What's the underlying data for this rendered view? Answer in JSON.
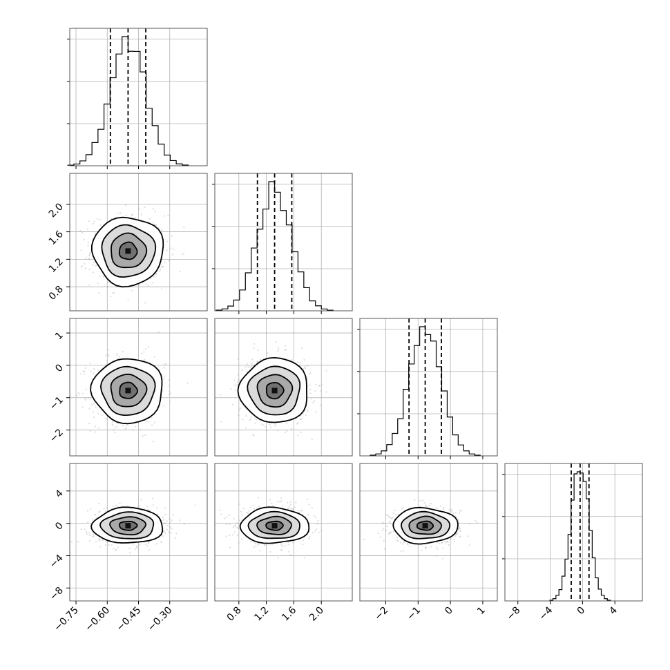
{
  "chart_data": {
    "type": "corner",
    "title": "",
    "grid": true,
    "colors": {
      "hist": "#000000",
      "contour": "#000000",
      "points": "#9e9e9e",
      "frame": "#555555",
      "grid": "#b0b0b0"
    },
    "parameters": [
      {
        "index": 0,
        "range": [
          -0.78,
          -0.12
        ],
        "ticks": [
          -0.75,
          -0.6,
          -0.45,
          -0.3
        ],
        "tick_labels": [
          "−0.75",
          "−0.60",
          "−0.45",
          "−0.30"
        ],
        "mean": -0.5,
        "sigma": 0.085,
        "quantiles": [
          -0.585,
          -0.5,
          -0.415
        ]
      },
      {
        "index": 1,
        "range": [
          0.45,
          2.45
        ],
        "ticks": [
          0.8,
          1.2,
          1.6,
          2.0
        ],
        "tick_labels": [
          "0.8",
          "1.2",
          "1.6",
          "2.0"
        ],
        "mean": 1.32,
        "sigma": 0.25,
        "quantiles": [
          1.07,
          1.32,
          1.57
        ]
      },
      {
        "index": 2,
        "range": [
          -2.8,
          1.45
        ],
        "ticks": [
          -2,
          -1,
          0,
          1
        ],
        "tick_labels": [
          "−2",
          "−1",
          "0",
          "1"
        ],
        "mean": -0.78,
        "sigma": 0.5,
        "quantiles": [
          -1.28,
          -0.78,
          -0.28
        ]
      },
      {
        "index": 3,
        "range": [
          -9.6,
          7.4
        ],
        "ticks": [
          -8,
          -4,
          0,
          4
        ],
        "tick_labels": [
          "−8",
          "−4",
          "0",
          "4"
        ],
        "mean": -0.3,
        "sigma": 1.1,
        "quantiles": [
          -1.4,
          -0.3,
          0.8
        ]
      }
    ],
    "pairs": [
      {
        "x": 0,
        "y": 1,
        "center": [
          -0.5,
          1.32
        ]
      },
      {
        "x": 0,
        "y": 2,
        "center": [
          -0.5,
          -0.78
        ]
      },
      {
        "x": 1,
        "y": 2,
        "center": [
          1.32,
          -0.78
        ]
      },
      {
        "x": 0,
        "y": 3,
        "center": [
          -0.5,
          -0.3
        ]
      },
      {
        "x": 1,
        "y": 3,
        "center": [
          1.32,
          -0.3
        ]
      },
      {
        "x": 2,
        "y": 3,
        "center": [
          -0.78,
          -0.3
        ]
      }
    ],
    "contour_levels_sigma": [
      0.5,
      1.0,
      1.5,
      2.0
    ]
  }
}
